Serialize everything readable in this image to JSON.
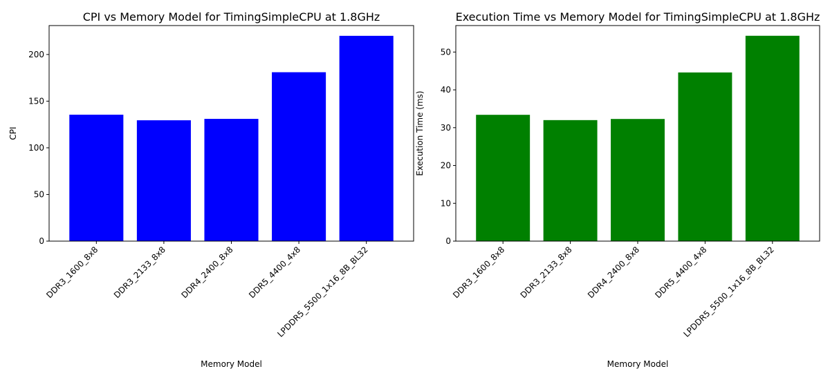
{
  "chart_data": [
    {
      "type": "bar",
      "title": "CPI vs Memory Model for TimingSimpleCPU at 1.8GHz",
      "xlabel": "Memory Model",
      "ylabel": "CPI",
      "categories": [
        "DDR3_1600_8x8",
        "DDR3_2133_8x8",
        "DDR4_2400_8x8",
        "DDR5_4400_4x8",
        "LPDDR5_5500_1x16_8B_BL32"
      ],
      "values": [
        135.5,
        129.5,
        131.0,
        181.0,
        220.0
      ],
      "ylim": [
        0,
        231
      ],
      "yticks": [
        0,
        50,
        100,
        150,
        200
      ],
      "color": "#0000ff",
      "grid": false
    },
    {
      "type": "bar",
      "title": "Execution Time vs Memory Model for TimingSimpleCPU at 1.8GHz",
      "xlabel": "Memory Model",
      "ylabel": "Execution Time (ms)",
      "categories": [
        "DDR3_1600_8x8",
        "DDR3_2133_8x8",
        "DDR4_2400_8x8",
        "DDR5_4400_4x8",
        "LPDDR5_5500_1x16_8B_BL32"
      ],
      "values": [
        33.4,
        32.0,
        32.3,
        44.6,
        54.3
      ],
      "ylim": [
        0,
        57
      ],
      "yticks": [
        0,
        10,
        20,
        30,
        40,
        50
      ],
      "color": "#008000",
      "grid": false
    }
  ]
}
